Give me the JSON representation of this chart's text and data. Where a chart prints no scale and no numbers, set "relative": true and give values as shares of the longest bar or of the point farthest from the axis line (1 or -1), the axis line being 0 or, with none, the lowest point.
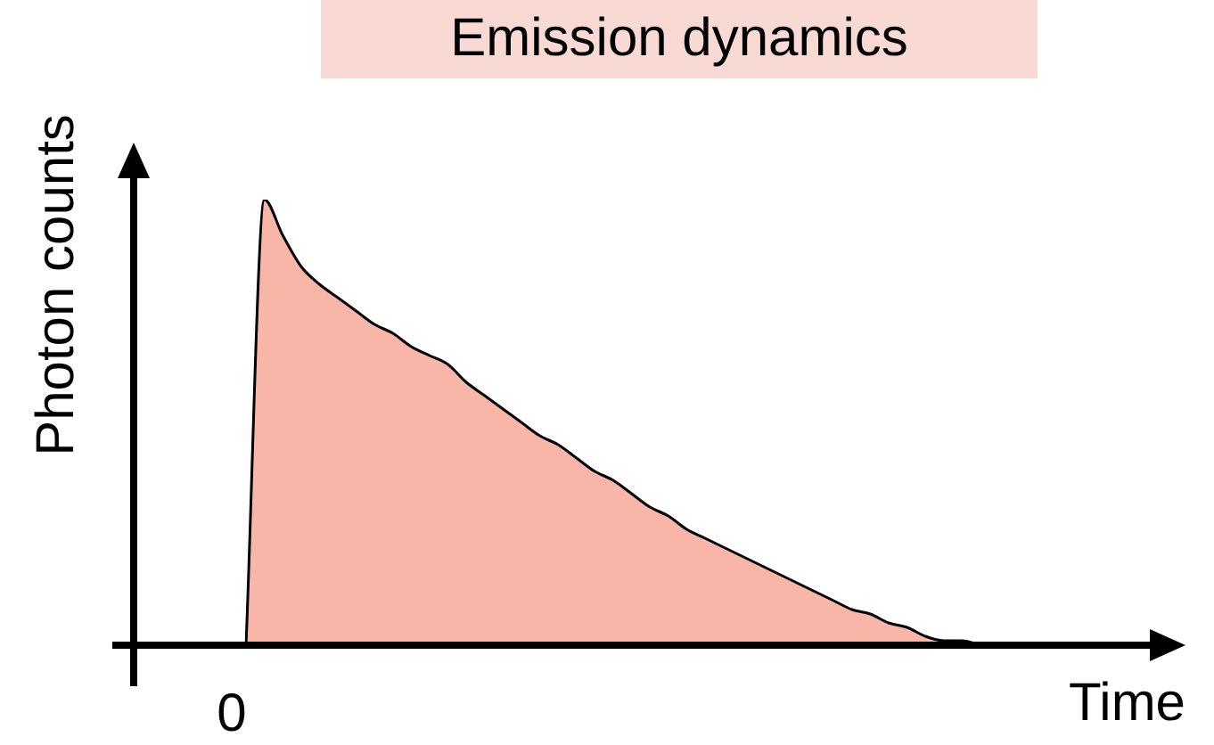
{
  "chart_data": {
    "type": "area",
    "title": "Emission dynamics",
    "xlabel": "Time",
    "ylabel": "Photon counts",
    "relative": true,
    "categories": [
      null,
      null,
      null,
      null,
      null,
      null,
      null,
      null,
      null,
      null,
      null,
      null,
      null,
      null,
      null,
      null,
      null,
      null,
      null,
      null,
      null,
      null,
      null,
      null,
      null,
      null,
      null,
      null,
      null,
      null,
      null,
      null,
      null,
      null,
      null,
      null,
      null,
      null,
      null,
      null,
      null
    ],
    "values": [
      0,
      1,
      0.92,
      0.85,
      0.81,
      0.78,
      0.75,
      0.72,
      0.7,
      0.67,
      0.65,
      0.63,
      0.59,
      0.56,
      0.53,
      0.5,
      0.47,
      0.45,
      0.42,
      0.39,
      0.37,
      0.34,
      0.31,
      0.29,
      0.26,
      0.24,
      0.22,
      0.2,
      0.18,
      0.16,
      0.14,
      0.12,
      0.1,
      0.08,
      0.07,
      0.05,
      0.04,
      0.02,
      0.01,
      0.01,
      0
    ],
    "color": "#f7b6a8",
    "annotations": [
      "0"
    ]
  }
}
